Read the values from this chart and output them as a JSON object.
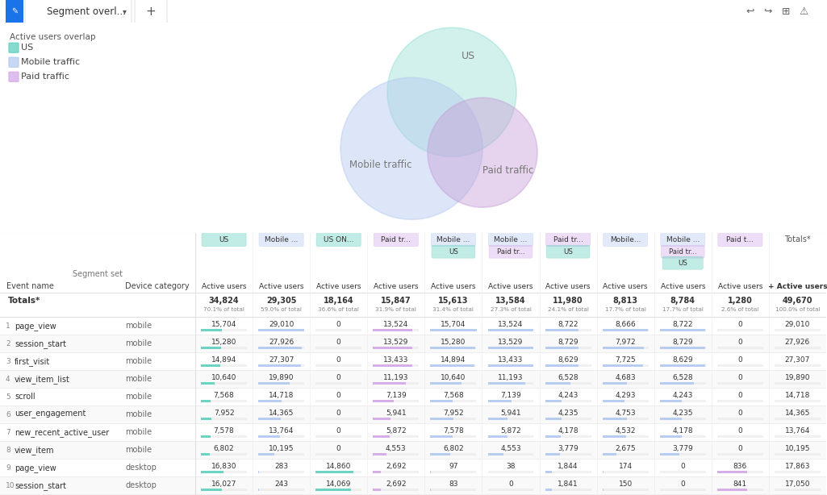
{
  "title": "Segment overl...",
  "subtitle": "Active users overlap",
  "legend": [
    {
      "label": "US",
      "color": "#5ecfbe"
    },
    {
      "label": "Mobile traffic",
      "color": "#b3c9f0"
    },
    {
      "label": "Paid traffic",
      "color": "#d4a8e8"
    }
  ],
  "col_header1_texts": [
    "US",
    "Mobile ...",
    "US ON...",
    "Paid tr...",
    "Mobile ...",
    "Mobile ...",
    "Paid tr...",
    "Mobile...",
    "Mobile ...",
    "Paid t...",
    "Totals*"
  ],
  "col_header1_colors": [
    "#5ecfbe",
    "#b3c9f0",
    "#5ecfbe",
    "#d4a8e8",
    "#b3c9f0",
    "#b3c9f0",
    "#d4a8e8",
    "#b3c9f0",
    "#b3c9f0",
    "#d4a8e8",
    "none"
  ],
  "col_header2_texts": [
    "",
    "",
    "",
    "",
    "US",
    "Paid tr...",
    "US",
    "",
    "Paid tr...",
    "",
    ""
  ],
  "col_header2_colors": [
    "",
    "",
    "",
    "",
    "#5ecfbe",
    "#d4a8e8",
    "#5ecfbe",
    "",
    "#d4a8e8",
    "",
    ""
  ],
  "col_header3_texts": [
    "",
    "",
    "",
    "",
    "",
    "",
    "",
    "",
    "US",
    "",
    ""
  ],
  "col_header3_colors": [
    "",
    "",
    "",
    "",
    "",
    "",
    "",
    "",
    "#5ecfbe",
    "",
    ""
  ],
  "totals_values": [
    "34,824",
    "29,305",
    "18,164",
    "15,847",
    "15,613",
    "13,584",
    "11,980",
    "8,813",
    "8,784",
    "1,280",
    "49,670"
  ],
  "totals_pcts": [
    "70.1% of total",
    "59.0% of total",
    "36.6% of total",
    "31.9% of total",
    "31.4% of total",
    "27.3% of total",
    "24.1% of total",
    "17.7% of total",
    "17.7% of total",
    "2.6% of total",
    "100.0% of total"
  ],
  "max_vals": [
    34824,
    29305,
    18164,
    15847,
    15613,
    13584,
    11980,
    8813,
    8784,
    1280,
    49670
  ],
  "rows": [
    {
      "num": "1",
      "event": "page_view",
      "device": "mobile",
      "values": [
        "15,704",
        "29,010",
        "0",
        "13,524",
        "15,704",
        "13,524",
        "8,722",
        "8,666",
        "8,722",
        "0",
        "29,010"
      ],
      "bc": [
        "#5ecfbe",
        "#b3c9f0",
        "",
        "#d4a8e8",
        "#b3c9f0",
        "#b3c9f0",
        "#b3c9f0",
        "#b3c9f0",
        "#b3c9f0",
        "",
        ""
      ]
    },
    {
      "num": "2",
      "event": "session_start",
      "device": "mobile",
      "values": [
        "15,280",
        "27,926",
        "0",
        "13,529",
        "15,280",
        "13,529",
        "8,729",
        "7,972",
        "8,729",
        "0",
        "27,926"
      ],
      "bc": [
        "#5ecfbe",
        "#b3c9f0",
        "",
        "#d4a8e8",
        "#b3c9f0",
        "#b3c9f0",
        "#b3c9f0",
        "#b3c9f0",
        "#b3c9f0",
        "",
        ""
      ]
    },
    {
      "num": "3",
      "event": "first_visit",
      "device": "mobile",
      "values": [
        "14,894",
        "27,307",
        "0",
        "13,433",
        "14,894",
        "13,433",
        "8,629",
        "7,725",
        "8,629",
        "0",
        "27,307"
      ],
      "bc": [
        "#5ecfbe",
        "#b3c9f0",
        "",
        "#d4a8e8",
        "#b3c9f0",
        "#b3c9f0",
        "#b3c9f0",
        "#b3c9f0",
        "#b3c9f0",
        "",
        ""
      ]
    },
    {
      "num": "4",
      "event": "view_item_list",
      "device": "mobile",
      "values": [
        "10,640",
        "19,890",
        "0",
        "11,193",
        "10,640",
        "11,193",
        "6,528",
        "4,683",
        "6,528",
        "0",
        "19,890"
      ],
      "bc": [
        "#5ecfbe",
        "#b3c9f0",
        "",
        "#d4a8e8",
        "#b3c9f0",
        "#b3c9f0",
        "#b3c9f0",
        "#b3c9f0",
        "#b3c9f0",
        "",
        ""
      ]
    },
    {
      "num": "5",
      "event": "scroll",
      "device": "mobile",
      "values": [
        "7,568",
        "14,718",
        "0",
        "7,139",
        "7,568",
        "7,139",
        "4,243",
        "4,293",
        "4,243",
        "0",
        "14,718"
      ],
      "bc": [
        "#5ecfbe",
        "#b3c9f0",
        "",
        "#d4a8e8",
        "#b3c9f0",
        "#b3c9f0",
        "#b3c9f0",
        "#b3c9f0",
        "#b3c9f0",
        "",
        ""
      ]
    },
    {
      "num": "6",
      "event": "user_engagement",
      "device": "mobile",
      "values": [
        "7,952",
        "14,365",
        "0",
        "5,941",
        "7,952",
        "5,941",
        "4,235",
        "4,753",
        "4,235",
        "0",
        "14,365"
      ],
      "bc": [
        "#5ecfbe",
        "#b3c9f0",
        "",
        "#d4a8e8",
        "#b3c9f0",
        "#b3c9f0",
        "#b3c9f0",
        "#b3c9f0",
        "#b3c9f0",
        "",
        ""
      ]
    },
    {
      "num": "7",
      "event": "new_recent_active_user",
      "device": "mobile",
      "values": [
        "7,578",
        "13,764",
        "0",
        "5,872",
        "7,578",
        "5,872",
        "4,178",
        "4,532",
        "4,178",
        "0",
        "13,764"
      ],
      "bc": [
        "#5ecfbe",
        "#b3c9f0",
        "",
        "#d4a8e8",
        "#b3c9f0",
        "#b3c9f0",
        "#b3c9f0",
        "#b3c9f0",
        "#b3c9f0",
        "",
        ""
      ]
    },
    {
      "num": "8",
      "event": "view_item",
      "device": "mobile",
      "values": [
        "6,802",
        "10,195",
        "0",
        "4,553",
        "6,802",
        "4,553",
        "3,779",
        "2,675",
        "3,779",
        "0",
        "10,195"
      ],
      "bc": [
        "#5ecfbe",
        "#b3c9f0",
        "",
        "#d4a8e8",
        "#b3c9f0",
        "#b3c9f0",
        "#b3c9f0",
        "#b3c9f0",
        "#b3c9f0",
        "",
        ""
      ]
    },
    {
      "num": "9",
      "event": "page_view",
      "device": "desktop",
      "values": [
        "16,830",
        "283",
        "14,860",
        "2,692",
        "97",
        "38",
        "1,844",
        "174",
        "0",
        "836",
        "17,863"
      ],
      "bc": [
        "#5ecfbe",
        "#b3c9f0",
        "#5ecfbe",
        "#d4a8e8",
        "#b3c9f0",
        "#b3c9f0",
        "#b3c9f0",
        "#b3c9f0",
        "",
        "#d4a8e8",
        ""
      ]
    },
    {
      "num": "10",
      "event": "session_start",
      "device": "desktop",
      "values": [
        "16,027",
        "243",
        "14,069",
        "2,692",
        "83",
        "0",
        "1,841",
        "150",
        "0",
        "841",
        "17,050"
      ],
      "bc": [
        "#5ecfbe",
        "#b3c9f0",
        "#5ecfbe",
        "#d4a8e8",
        "#b3c9f0",
        "#b3c9f0",
        "#b3c9f0",
        "#b3c9f0",
        "",
        "#d4a8e8",
        ""
      ]
    }
  ],
  "bg": "#ffffff",
  "border": "#e0e0e0",
  "alt_bg": "#f5f5f5"
}
